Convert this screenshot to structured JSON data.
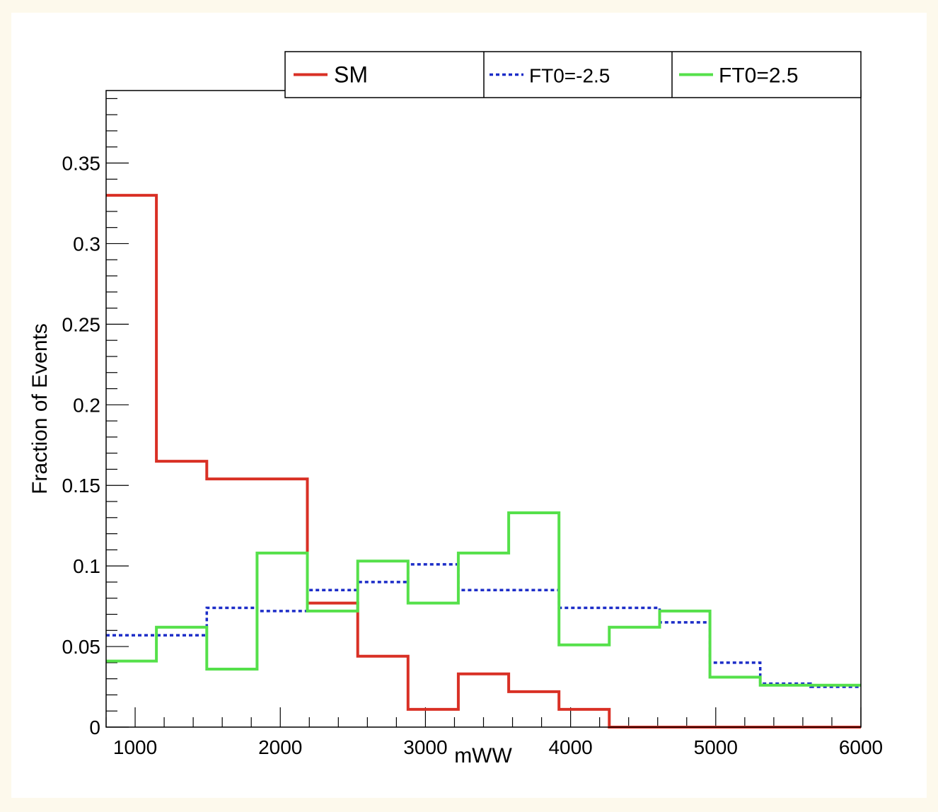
{
  "chart_data": {
    "type": "line",
    "title": "",
    "xlabel": "mWW",
    "ylabel": "Fraction of Events",
    "xlim": [
      800,
      6000
    ],
    "ylim": [
      0,
      0.395
    ],
    "x_ticks": [
      1000,
      2000,
      3000,
      4000,
      5000,
      6000
    ],
    "x_tick_labels": [
      "1000",
      "2000",
      "3000",
      "4000",
      "5000",
      "6000"
    ],
    "y_ticks": [
      0,
      0.05,
      0.1,
      0.15,
      0.2,
      0.25,
      0.3,
      0.35
    ],
    "y_tick_labels": [
      "0",
      "0.05",
      "0.1",
      "0.15",
      "0.2",
      "0.25",
      "0.3",
      "0.35"
    ],
    "grid": false,
    "legend_position": "top",
    "bin_edges": [
      800,
      1146.7,
      1493.3,
      1840,
      2186.7,
      2533.3,
      2880,
      3226.7,
      3573.3,
      3920,
      4266.7,
      4613.3,
      4960,
      5306.7,
      5653.3,
      6000
    ],
    "series": [
      {
        "name": "SM",
        "color": "#d93025",
        "style": "solid",
        "values": [
          0.33,
          0.165,
          0.154,
          0.154,
          0.077,
          0.044,
          0.011,
          0.033,
          0.022,
          0.011,
          0.0,
          0.0,
          0.0,
          0.0,
          0.0
        ]
      },
      {
        "name": "FT0=-2.5",
        "color": "#1c2dc8",
        "style": "dotted",
        "values": [
          0.057,
          0.057,
          0.074,
          0.072,
          0.085,
          0.09,
          0.101,
          0.085,
          0.085,
          0.074,
          0.074,
          0.065,
          0.04,
          0.027,
          0.025
        ]
      },
      {
        "name": "FT0=2.5",
        "color": "#55e04a",
        "style": "solid",
        "values": [
          0.041,
          0.062,
          0.036,
          0.108,
          0.072,
          0.103,
          0.077,
          0.108,
          0.133,
          0.051,
          0.062,
          0.072,
          0.031,
          0.026,
          0.026
        ]
      }
    ]
  }
}
